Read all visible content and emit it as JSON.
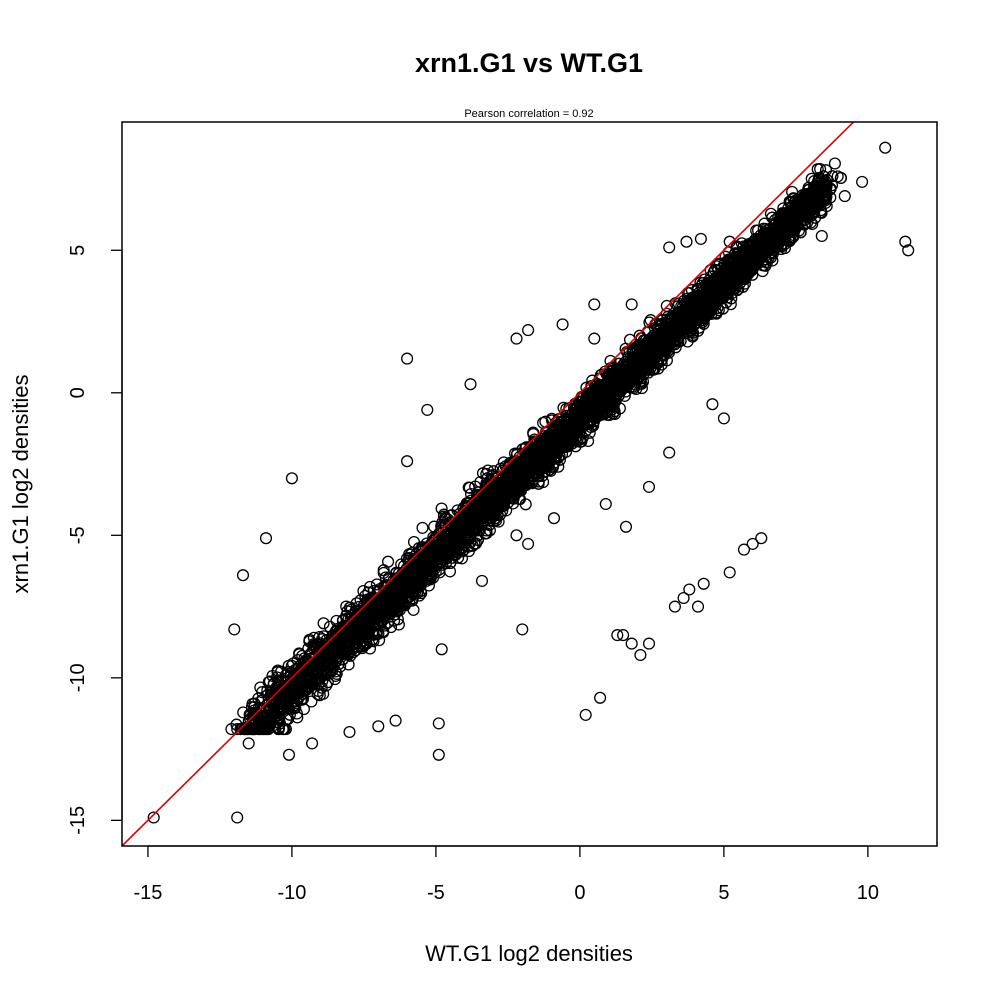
{
  "chart_data": {
    "type": "scatter",
    "title": "xrn1.G1 vs WT.G1",
    "subtitle": "Pearson correlation =  0.92",
    "xlabel": "WT.G1 log2 densities",
    "ylabel": "xrn1.G1 log2 densities",
    "xlim": [
      -15.9,
      12.4
    ],
    "ylim": [
      -15.9,
      9.5
    ],
    "x_ticks": [
      -15,
      -10,
      -5,
      0,
      5,
      10
    ],
    "y_ticks": [
      -15,
      -10,
      -5,
      0,
      5
    ],
    "x_tick_labels": [
      "-15",
      "-10",
      "-5",
      "0",
      "5",
      "10"
    ],
    "y_tick_labels": [
      "-15",
      "-10",
      "-5",
      "0",
      "5"
    ],
    "grid": false,
    "legend": "none",
    "point_color": "#000000",
    "fit_line": {
      "intercept": 0.0,
      "slope": 1.0,
      "color": "#dd0000"
    },
    "main_cloud": {
      "description_free": true,
      "center_line": {
        "intercept": -0.9,
        "slope": 0.95
      },
      "x_range": [
        -11.5,
        8.5
      ],
      "n_points": 4200
    },
    "points": [
      [
        -14.8,
        -14.9
      ],
      [
        -11.9,
        -14.9
      ],
      [
        -11.9,
        -11.8
      ],
      [
        -12.1,
        -11.8
      ],
      [
        -11.5,
        -12.3
      ],
      [
        -10.1,
        -12.7
      ],
      [
        -9.3,
        -12.3
      ],
      [
        -4.9,
        -12.7
      ],
      [
        -4.9,
        -11.6
      ],
      [
        -12.0,
        -8.3
      ],
      [
        -11.7,
        -6.4
      ],
      [
        -10.9,
        -5.1
      ],
      [
        -10.0,
        -3.0
      ],
      [
        -6.0,
        -2.4
      ],
      [
        -5.3,
        -0.6
      ],
      [
        -6.0,
        1.2
      ],
      [
        -3.8,
        0.3
      ],
      [
        -2.2,
        1.9
      ],
      [
        -1.8,
        2.2
      ],
      [
        0.5,
        1.9
      ],
      [
        0.2,
        -11.3
      ],
      [
        0.7,
        -10.7
      ],
      [
        1.8,
        -8.8
      ],
      [
        2.1,
        -9.2
      ],
      [
        2.4,
        -8.8
      ],
      [
        1.3,
        -8.5
      ],
      [
        1.5,
        -8.5
      ],
      [
        3.3,
        -7.5
      ],
      [
        3.6,
        -7.2
      ],
      [
        3.8,
        -6.9
      ],
      [
        4.1,
        -7.5
      ],
      [
        4.3,
        -6.7
      ],
      [
        5.2,
        -6.3
      ],
      [
        5.7,
        -5.5
      ],
      [
        6.0,
        -5.3
      ],
      [
        6.3,
        -5.1
      ],
      [
        2.4,
        -3.3
      ],
      [
        1.6,
        -4.7
      ],
      [
        -2.0,
        -8.3
      ],
      [
        -3.4,
        -6.6
      ],
      [
        3.1,
        5.1
      ],
      [
        3.7,
        5.3
      ],
      [
        4.2,
        5.4
      ],
      [
        5.2,
        5.3
      ],
      [
        7.4,
        5.7
      ],
      [
        8.5,
        6.8
      ],
      [
        9.2,
        6.9
      ],
      [
        9.8,
        7.4
      ],
      [
        10.6,
        8.6
      ],
      [
        11.3,
        5.3
      ],
      [
        11.4,
        5.0
      ],
      [
        8.4,
        5.5
      ],
      [
        7.8,
        5.9
      ],
      [
        4.6,
        -0.4
      ],
      [
        5.0,
        -0.9
      ],
      [
        1.8,
        3.1
      ],
      [
        0.5,
        3.1
      ],
      [
        -0.6,
        2.4
      ],
      [
        -10.5,
        -9.8
      ],
      [
        -11.3,
        -10.9
      ],
      [
        -10.8,
        -11.7
      ],
      [
        -8.0,
        -11.9
      ],
      [
        -7.0,
        -11.7
      ],
      [
        -6.4,
        -11.5
      ],
      [
        -4.8,
        -9.0
      ],
      [
        -2.2,
        -5.0
      ],
      [
        -1.8,
        -5.3
      ],
      [
        -0.9,
        -4.4
      ],
      [
        0.9,
        -3.9
      ],
      [
        3.1,
        -2.1
      ]
    ]
  }
}
